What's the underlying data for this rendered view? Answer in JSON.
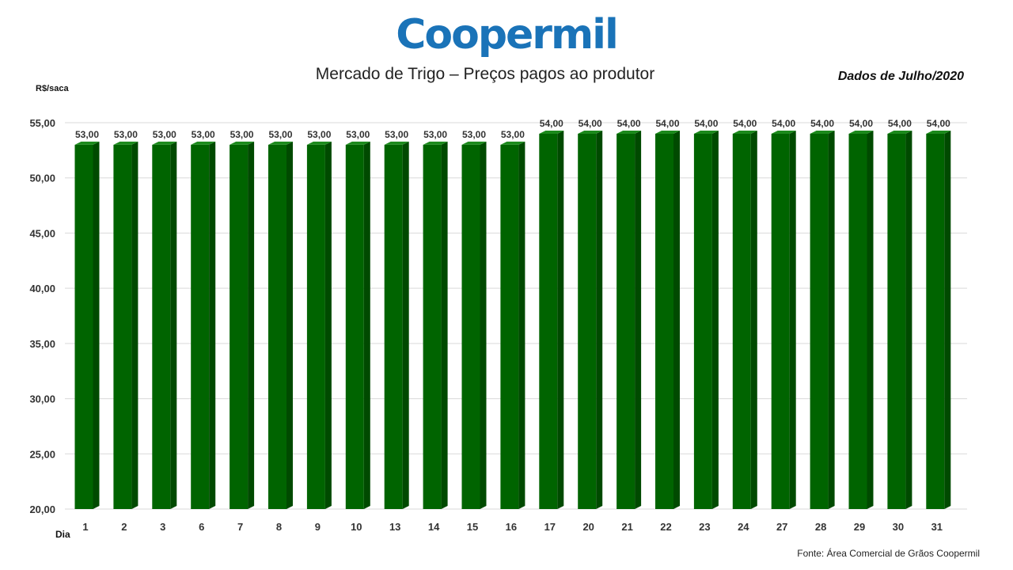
{
  "header": {
    "logo_text": "Coopermil",
    "title": "Mercado de Trigo – Preços pagos ao produtor",
    "subtitle": "Dados de Julho/2020"
  },
  "footer": {
    "source": "Fonte: Área Comercial de Grãos Coopermil"
  },
  "colors": {
    "bar_front": "#006400",
    "bar_side": "#004a00",
    "bar_top": "#1c8a1c",
    "logo": "#1a73b8"
  },
  "chart_data": {
    "type": "bar",
    "title": "Mercado de Trigo – Preços pagos ao produtor",
    "xlabel": "Dia",
    "ylabel": "R$/saca",
    "ylim": [
      20,
      55
    ],
    "yticks": [
      20,
      25,
      30,
      35,
      40,
      45,
      50,
      55
    ],
    "ytick_labels": [
      "20,00",
      "25,00",
      "30,00",
      "35,00",
      "40,00",
      "45,00",
      "50,00",
      "55,00"
    ],
    "grid": true,
    "categories": [
      "1",
      "2",
      "3",
      "6",
      "7",
      "8",
      "9",
      "10",
      "13",
      "14",
      "15",
      "16",
      "17",
      "20",
      "21",
      "22",
      "23",
      "24",
      "27",
      "28",
      "29",
      "30",
      "31"
    ],
    "values": [
      53,
      53,
      53,
      53,
      53,
      53,
      53,
      53,
      53,
      53,
      53,
      53,
      54,
      54,
      54,
      54,
      54,
      54,
      54,
      54,
      54,
      54,
      54
    ],
    "value_labels": [
      "53,00",
      "53,00",
      "53,00",
      "53,00",
      "53,00",
      "53,00",
      "53,00",
      "53,00",
      "53,00",
      "53,00",
      "53,00",
      "53,00",
      "54,00",
      "54,00",
      "54,00",
      "54,00",
      "54,00",
      "54,00",
      "54,00",
      "54,00",
      "54,00",
      "54,00",
      "54,00"
    ]
  }
}
